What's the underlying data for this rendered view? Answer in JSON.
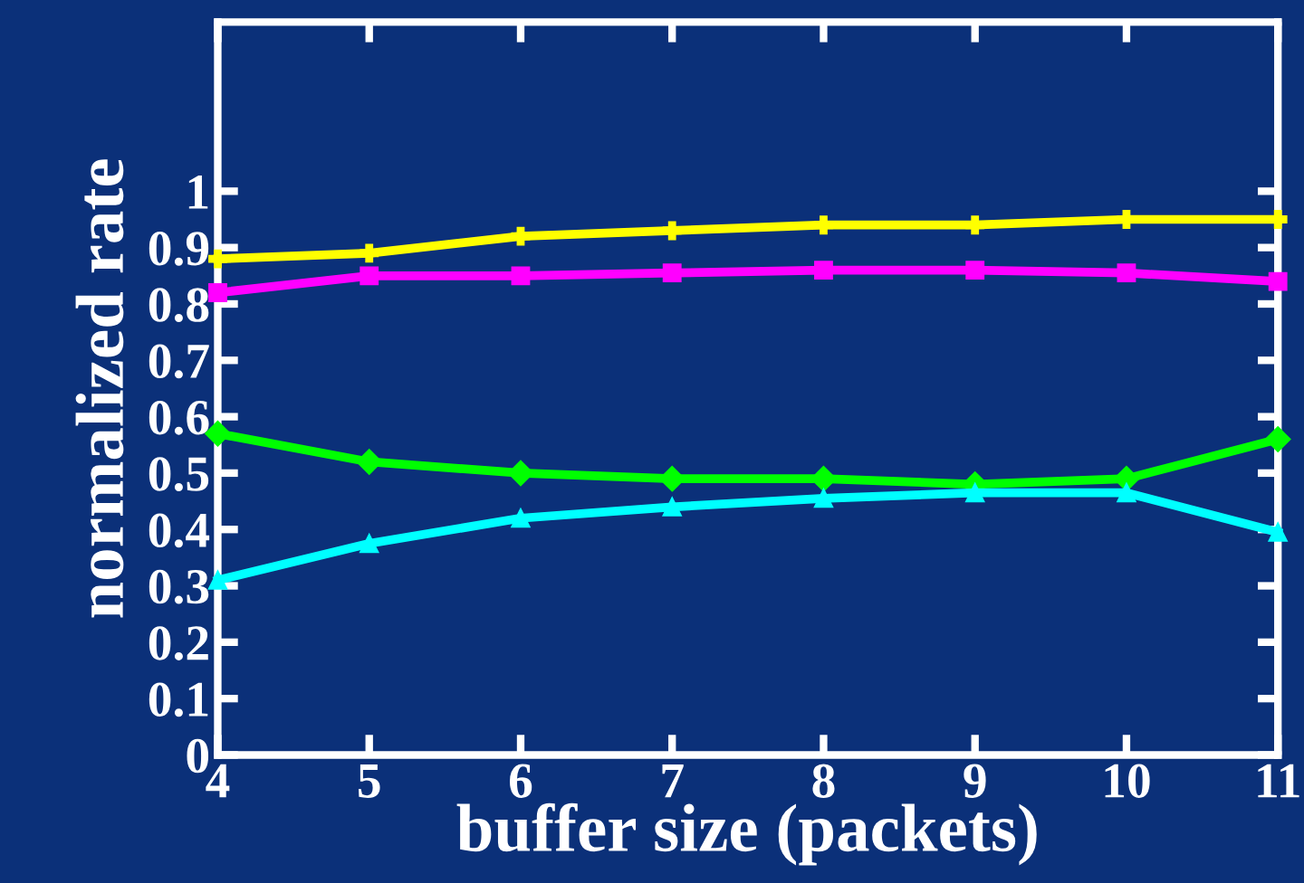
{
  "chart_data": {
    "type": "line",
    "xlabel": "buffer size (packets)",
    "ylabel": "normalized rate",
    "x": [
      4,
      5,
      6,
      7,
      8,
      9,
      10,
      11
    ],
    "series": [
      {
        "color": "#ffff00",
        "marker": "cross",
        "values": [
          0.88,
          0.89,
          0.92,
          0.93,
          0.94,
          0.94,
          0.95,
          0.95
        ]
      },
      {
        "color": "#ff00ff",
        "marker": "square",
        "values": [
          0.82,
          0.85,
          0.85,
          0.855,
          0.86,
          0.86,
          0.855,
          0.84
        ]
      },
      {
        "color": "#00ff00",
        "marker": "diamond",
        "values": [
          0.57,
          0.52,
          0.5,
          0.49,
          0.49,
          0.48,
          0.49,
          0.56
        ]
      },
      {
        "color": "#00ffff",
        "marker": "triangle",
        "values": [
          0.31,
          0.375,
          0.42,
          0.44,
          0.455,
          0.465,
          0.465,
          0.395
        ]
      }
    ],
    "xlim": [
      4,
      11
    ],
    "xticks": [
      4,
      5,
      6,
      7,
      8,
      9,
      10,
      11
    ],
    "ylim": [
      0,
      1.3
    ],
    "yticks": [
      0,
      0.1,
      0.2,
      0.3,
      0.4,
      0.5,
      0.6,
      0.7,
      0.8,
      0.9,
      1
    ],
    "grid": false,
    "legend": false,
    "line_style": "solid"
  }
}
